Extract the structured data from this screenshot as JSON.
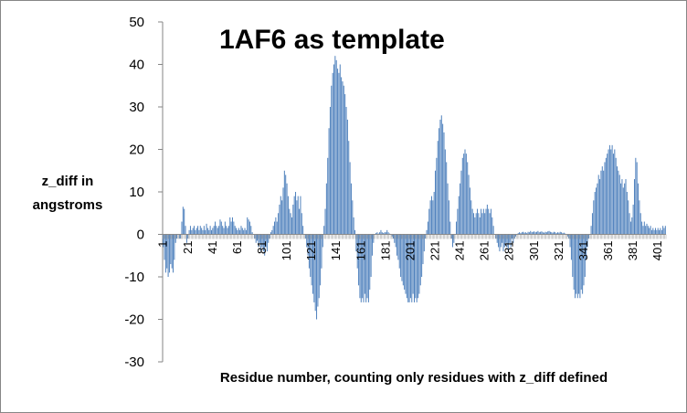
{
  "chart_data": {
    "type": "bar",
    "title": "1AF6 as template",
    "ylabel": [
      "z_diff in",
      "angstroms"
    ],
    "xlabel": "Residue number, counting only residues with z_diff defined",
    "color": "#4f81bd",
    "ylim": [
      -30,
      50
    ],
    "yticks": [
      -30,
      -20,
      -10,
      0,
      10,
      20,
      30,
      40,
      50
    ],
    "grid": false,
    "categories": [
      "1",
      null,
      null,
      null,
      null,
      null,
      null,
      null,
      null,
      null,
      null,
      null,
      null,
      null,
      null,
      null,
      null,
      null,
      null,
      null,
      "21",
      null,
      null,
      null,
      null,
      null,
      null,
      null,
      null,
      null,
      null,
      null,
      null,
      null,
      null,
      null,
      null,
      null,
      null,
      null,
      "41",
      null,
      null,
      null,
      null,
      null,
      null,
      null,
      null,
      null,
      null,
      null,
      null,
      null,
      null,
      null,
      null,
      null,
      null,
      null,
      "61",
      null,
      null,
      null,
      null,
      null,
      null,
      null,
      null,
      null,
      null,
      null,
      null,
      null,
      null,
      null,
      null,
      null,
      null,
      null,
      "81",
      null,
      null,
      null,
      null,
      null,
      null,
      null,
      null,
      null,
      null,
      null,
      null,
      null,
      null,
      null,
      null,
      null,
      null,
      null,
      "101",
      null,
      null,
      null,
      null,
      null,
      null,
      null,
      null,
      null,
      null,
      null,
      null,
      null,
      null,
      null,
      null,
      null,
      null,
      null,
      "121",
      null,
      null,
      null,
      null,
      null,
      null,
      null,
      null,
      null,
      null,
      null,
      null,
      null,
      null,
      null,
      null,
      null,
      null,
      null,
      "141",
      null,
      null,
      null,
      null,
      null,
      null,
      null,
      null,
      null,
      null,
      null,
      null,
      null,
      null,
      null,
      null,
      null,
      null,
      null,
      "161",
      null,
      null,
      null,
      null,
      null,
      null,
      null,
      null,
      null,
      null,
      null,
      null,
      null,
      null,
      null,
      null,
      null,
      null,
      null,
      "181",
      null,
      null,
      null,
      null,
      null,
      null,
      null,
      null,
      null,
      null,
      null,
      null,
      null,
      null,
      null,
      null,
      null,
      null,
      null,
      "201",
      null,
      null,
      null,
      null,
      null,
      null,
      null,
      null,
      null,
      null,
      null,
      null,
      null,
      null,
      null,
      null,
      null,
      null,
      null,
      "221",
      null,
      null,
      null,
      null,
      null,
      null,
      null,
      null,
      null,
      null,
      null,
      null,
      null,
      null,
      null,
      null,
      null,
      null,
      null,
      "241",
      null,
      null,
      null,
      null,
      null,
      null,
      null,
      null,
      null,
      null,
      null,
      null,
      null,
      null,
      null,
      null,
      null,
      null,
      null,
      "261",
      null,
      null,
      null,
      null,
      null,
      null,
      null,
      null,
      null,
      null,
      null,
      null,
      null,
      null,
      null,
      null,
      null,
      null,
      null,
      "281",
      null,
      null,
      null,
      null,
      null,
      null,
      null,
      null,
      null,
      null,
      null,
      null,
      null,
      null,
      null,
      null,
      null,
      null,
      null,
      "301",
      null,
      null,
      null,
      null,
      null,
      null,
      null,
      null,
      null,
      null,
      null,
      null,
      null,
      null,
      null,
      null,
      null,
      null,
      null,
      "321",
      null,
      null,
      null,
      null,
      null,
      null,
      null,
      null,
      null,
      null,
      null,
      null,
      null,
      null,
      null,
      null,
      null,
      null,
      null,
      "341",
      null,
      null,
      null,
      null,
      null,
      null,
      null,
      null,
      null,
      null,
      null,
      null,
      null,
      null,
      null,
      null,
      null,
      null,
      null,
      "361",
      null,
      null,
      null,
      null,
      null,
      null,
      null,
      null,
      null,
      null,
      null,
      null,
      null,
      null,
      null,
      null,
      null,
      null,
      null,
      "381",
      null,
      null,
      null,
      null,
      null,
      null,
      null,
      null,
      null,
      null,
      null,
      null,
      null,
      null,
      null,
      null,
      null,
      null,
      null,
      "401",
      null,
      null,
      null,
      null,
      null,
      null
    ],
    "values": [
      -3,
      -6,
      -9,
      -8,
      -10,
      -9,
      -7,
      -8,
      -9,
      -6,
      -2,
      -1,
      0,
      -1,
      -1,
      3,
      6.5,
      6,
      2,
      -2,
      -1,
      1,
      2,
      1,
      1.5,
      2,
      1,
      1.5,
      2,
      1,
      2,
      1.5,
      1,
      2,
      1,
      2.5,
      1.5,
      1,
      2,
      1,
      1.5,
      2,
      3,
      2,
      1.5,
      2,
      3.5,
      3,
      2,
      1.5,
      3,
      2,
      1.5,
      2,
      4,
      3,
      4,
      3,
      2,
      1.5,
      1,
      1.5,
      1,
      2,
      1.5,
      1,
      1.5,
      1,
      4,
      3.5,
      3,
      2,
      0.5,
      0,
      -1,
      -2,
      -1.5,
      -3,
      -2,
      -4,
      -3,
      -4,
      -5,
      -3,
      -4,
      -2,
      -1,
      0.5,
      1,
      2,
      3,
      4,
      3,
      5,
      7,
      9,
      8,
      11,
      15,
      14,
      12,
      9,
      6,
      5,
      4,
      7,
      9,
      10,
      8,
      9,
      6,
      9,
      5,
      2,
      0,
      -1,
      -3,
      -5,
      -8,
      -10,
      -12,
      -14,
      -16,
      -18,
      -20,
      -17,
      -15,
      -12,
      -8,
      -3,
      2,
      6,
      12,
      18,
      25,
      30,
      35,
      38,
      40,
      42,
      41,
      39,
      38,
      40,
      37,
      36,
      35,
      33,
      30,
      27,
      22,
      17,
      12,
      8,
      4,
      1,
      -4,
      -8,
      -12,
      -15,
      -16,
      -15,
      -16,
      -14,
      -16,
      -15,
      -16,
      -13,
      -10,
      -5,
      -2,
      0,
      0.3,
      0.5,
      0.2,
      0.5,
      1,
      0.5,
      0.3,
      0.5,
      0.5,
      1,
      0.5,
      0.2,
      0,
      -0.5,
      -1,
      -2,
      -3,
      -5,
      -6,
      -8,
      -10,
      -11,
      -12,
      -13,
      -14,
      -15,
      -16,
      -16,
      -15,
      -16,
      -14,
      -16,
      -15,
      -16,
      -15,
      -14,
      -12,
      -10,
      -7,
      -4,
      -1,
      1,
      3,
      6,
      8,
      9,
      8,
      10,
      15,
      18,
      22,
      25,
      27,
      28,
      26,
      24,
      20,
      17,
      12,
      8,
      3,
      -1,
      -3,
      -2,
      0,
      3,
      6,
      9,
      12,
      15,
      18,
      19,
      20,
      19,
      17,
      14,
      11,
      8,
      6,
      5,
      4,
      5,
      6,
      5,
      4,
      6,
      5,
      6,
      5,
      6,
      7,
      6,
      5,
      6,
      4,
      2,
      0,
      -1,
      -2,
      -3,
      -4,
      -3,
      -2,
      -4,
      -3,
      -2,
      -3,
      -4,
      -2,
      -3,
      -1,
      -2,
      -1,
      -0.5,
      0,
      0.3,
      0.5,
      0.3,
      0.5,
      0.6,
      0.4,
      0.5,
      0.3,
      0.6,
      0.5,
      0.8,
      0.5,
      0.6,
      0.7,
      0.5,
      0.6,
      0.8,
      0.5,
      0.6,
      0.7,
      0.5,
      0.4,
      0.6,
      0.5,
      0.7,
      0.8,
      0.6,
      0.5,
      0.4,
      0.6,
      0.5,
      0.3,
      0.5,
      0.4,
      0.6,
      0.5,
      0.3,
      0.4,
      0.2,
      0,
      -0.5,
      -1,
      -3,
      -6,
      -10,
      -13,
      -15,
      -14,
      -15,
      -14,
      -15,
      -13,
      -14,
      -12,
      -10,
      -6,
      -3,
      -1,
      0,
      2,
      5,
      8,
      10,
      11,
      12,
      14,
      13,
      15,
      16,
      15,
      17,
      18,
      19,
      20,
      21,
      20,
      21,
      19,
      20,
      18,
      16,
      15,
      14,
      12,
      13,
      11,
      12,
      13,
      10,
      8,
      5,
      3,
      4,
      7,
      13,
      18,
      17,
      12,
      8,
      5,
      3,
      2,
      3,
      2,
      2.5,
      2,
      1.5,
      2,
      1,
      1.5,
      1,
      1.5,
      1,
      1.5,
      1,
      1.5,
      1,
      2,
      1.5,
      2
    ]
  }
}
